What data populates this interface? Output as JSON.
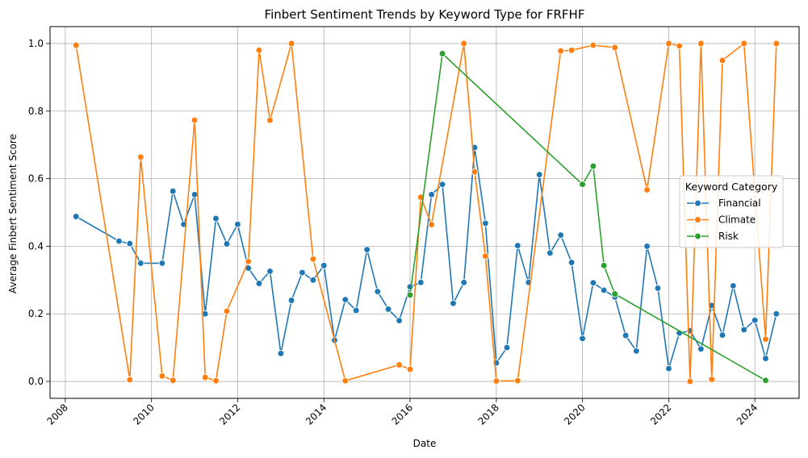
{
  "chart_data": {
    "type": "line",
    "title": "Finbert Sentiment Trends by Keyword Type for FRFHF",
    "xlabel": "Date",
    "ylabel": "Average Finbert Sentiment Score",
    "xlim": [
      "2007-08-25",
      "2025-01-10"
    ],
    "ylim": [
      -0.05,
      1.05
    ],
    "x_ticks": [
      "2008",
      "2010",
      "2012",
      "2014",
      "2016",
      "2018",
      "2020",
      "2022",
      "2024"
    ],
    "y_ticks": [
      "0.0",
      "0.2",
      "0.4",
      "0.6",
      "0.8",
      "1.0"
    ],
    "grid": true,
    "legend": {
      "title": "Keyword Category",
      "position": "center-right"
    },
    "series": [
      {
        "name": "Financial",
        "color": "#1f77b4",
        "points": [
          [
            "2008-04-01",
            0.488
          ],
          [
            "2009-04-01",
            0.415
          ],
          [
            "2009-07-01",
            0.408
          ],
          [
            "2009-10-01",
            0.35
          ],
          [
            "2010-04-01",
            0.35
          ],
          [
            "2010-07-01",
            0.563
          ],
          [
            "2010-10-01",
            0.465
          ],
          [
            "2011-01-01",
            0.553
          ],
          [
            "2011-04-01",
            0.2
          ],
          [
            "2011-07-01",
            0.482
          ],
          [
            "2011-10-01",
            0.407
          ],
          [
            "2012-01-01",
            0.465
          ],
          [
            "2012-04-01",
            0.335
          ],
          [
            "2012-07-01",
            0.29
          ],
          [
            "2012-10-01",
            0.326
          ],
          [
            "2013-01-01",
            0.083
          ],
          [
            "2013-04-01",
            0.24
          ],
          [
            "2013-07-01",
            0.322
          ],
          [
            "2013-10-01",
            0.3
          ],
          [
            "2014-01-01",
            0.343
          ],
          [
            "2014-04-01",
            0.122
          ],
          [
            "2014-07-01",
            0.242
          ],
          [
            "2014-10-01",
            0.21
          ],
          [
            "2015-01-01",
            0.39
          ],
          [
            "2015-04-01",
            0.266
          ],
          [
            "2015-07-01",
            0.214
          ],
          [
            "2015-10-01",
            0.18
          ],
          [
            "2016-01-01",
            0.28
          ],
          [
            "2016-04-01",
            0.293
          ],
          [
            "2016-07-01",
            0.553
          ],
          [
            "2016-10-01",
            0.583
          ],
          [
            "2017-01-01",
            0.231
          ],
          [
            "2017-04-01",
            0.293
          ],
          [
            "2017-07-01",
            0.692
          ],
          [
            "2017-10-01",
            0.468
          ],
          [
            "2018-01-01",
            0.055
          ],
          [
            "2018-04-01",
            0.1
          ],
          [
            "2018-07-01",
            0.402
          ],
          [
            "2018-10-01",
            0.293
          ],
          [
            "2019-01-01",
            0.612
          ],
          [
            "2019-04-01",
            0.38
          ],
          [
            "2019-07-01",
            0.433
          ],
          [
            "2019-10-01",
            0.352
          ],
          [
            "2020-01-01",
            0.127
          ],
          [
            "2020-04-01",
            0.292
          ],
          [
            "2020-07-01",
            0.27
          ],
          [
            "2020-10-01",
            0.25
          ],
          [
            "2021-01-01",
            0.136
          ],
          [
            "2021-04-01",
            0.09
          ],
          [
            "2021-07-01",
            0.4
          ],
          [
            "2021-10-01",
            0.276
          ],
          [
            "2022-01-01",
            0.038
          ],
          [
            "2022-04-01",
            0.143
          ],
          [
            "2022-07-01",
            0.15
          ],
          [
            "2022-10-01",
            0.096
          ],
          [
            "2023-01-01",
            0.225
          ],
          [
            "2023-04-01",
            0.137
          ],
          [
            "2023-07-01",
            0.283
          ],
          [
            "2023-10-01",
            0.153
          ],
          [
            "2024-01-01",
            0.181
          ],
          [
            "2024-04-01",
            0.068
          ],
          [
            "2024-07-01",
            0.2
          ]
        ]
      },
      {
        "name": "Climate",
        "color": "#ff7f0e",
        "points": [
          [
            "2008-04-01",
            0.995
          ],
          [
            "2009-07-01",
            0.005
          ],
          [
            "2009-10-01",
            0.664
          ],
          [
            "2010-04-01",
            0.016
          ],
          [
            "2010-07-01",
            0.003
          ],
          [
            "2011-01-01",
            0.773
          ],
          [
            "2011-04-01",
            0.012
          ],
          [
            "2011-07-01",
            0.002
          ],
          [
            "2011-10-01",
            0.208
          ],
          [
            "2012-04-01",
            0.355
          ],
          [
            "2012-07-01",
            0.98
          ],
          [
            "2012-10-01",
            0.773
          ],
          [
            "2013-04-01",
            1.0
          ],
          [
            "2013-10-01",
            0.362
          ],
          [
            "2014-07-01",
            0.002
          ],
          [
            "2015-10-01",
            0.049
          ],
          [
            "2016-01-01",
            0.036
          ],
          [
            "2016-04-01",
            0.545
          ],
          [
            "2016-07-01",
            0.464
          ],
          [
            "2017-04-01",
            1.0
          ],
          [
            "2017-07-01",
            0.62
          ],
          [
            "2017-10-01",
            0.371
          ],
          [
            "2018-01-01",
            0.001
          ],
          [
            "2018-07-01",
            0.002
          ],
          [
            "2019-07-01",
            0.978
          ],
          [
            "2019-10-01",
            0.98
          ],
          [
            "2020-04-01",
            0.995
          ],
          [
            "2020-10-01",
            0.988
          ],
          [
            "2021-07-01",
            0.567
          ],
          [
            "2022-01-01",
            1.0
          ],
          [
            "2022-04-01",
            0.993
          ],
          [
            "2022-07-01",
            0.0
          ],
          [
            "2022-10-01",
            1.0
          ],
          [
            "2023-01-01",
            0.006
          ],
          [
            "2023-04-01",
            0.95
          ],
          [
            "2023-10-01",
            1.0
          ],
          [
            "2024-04-01",
            0.125
          ],
          [
            "2024-07-01",
            1.0
          ]
        ]
      },
      {
        "name": "Risk",
        "color": "#2ca02c",
        "points": [
          [
            "2016-01-01",
            0.256
          ],
          [
            "2016-10-01",
            0.97
          ],
          [
            "2020-01-01",
            0.583
          ],
          [
            "2020-04-01",
            0.637
          ],
          [
            "2020-07-01",
            0.343
          ],
          [
            "2020-10-01",
            0.259
          ],
          [
            "2024-04-01",
            0.003
          ]
        ]
      }
    ]
  }
}
